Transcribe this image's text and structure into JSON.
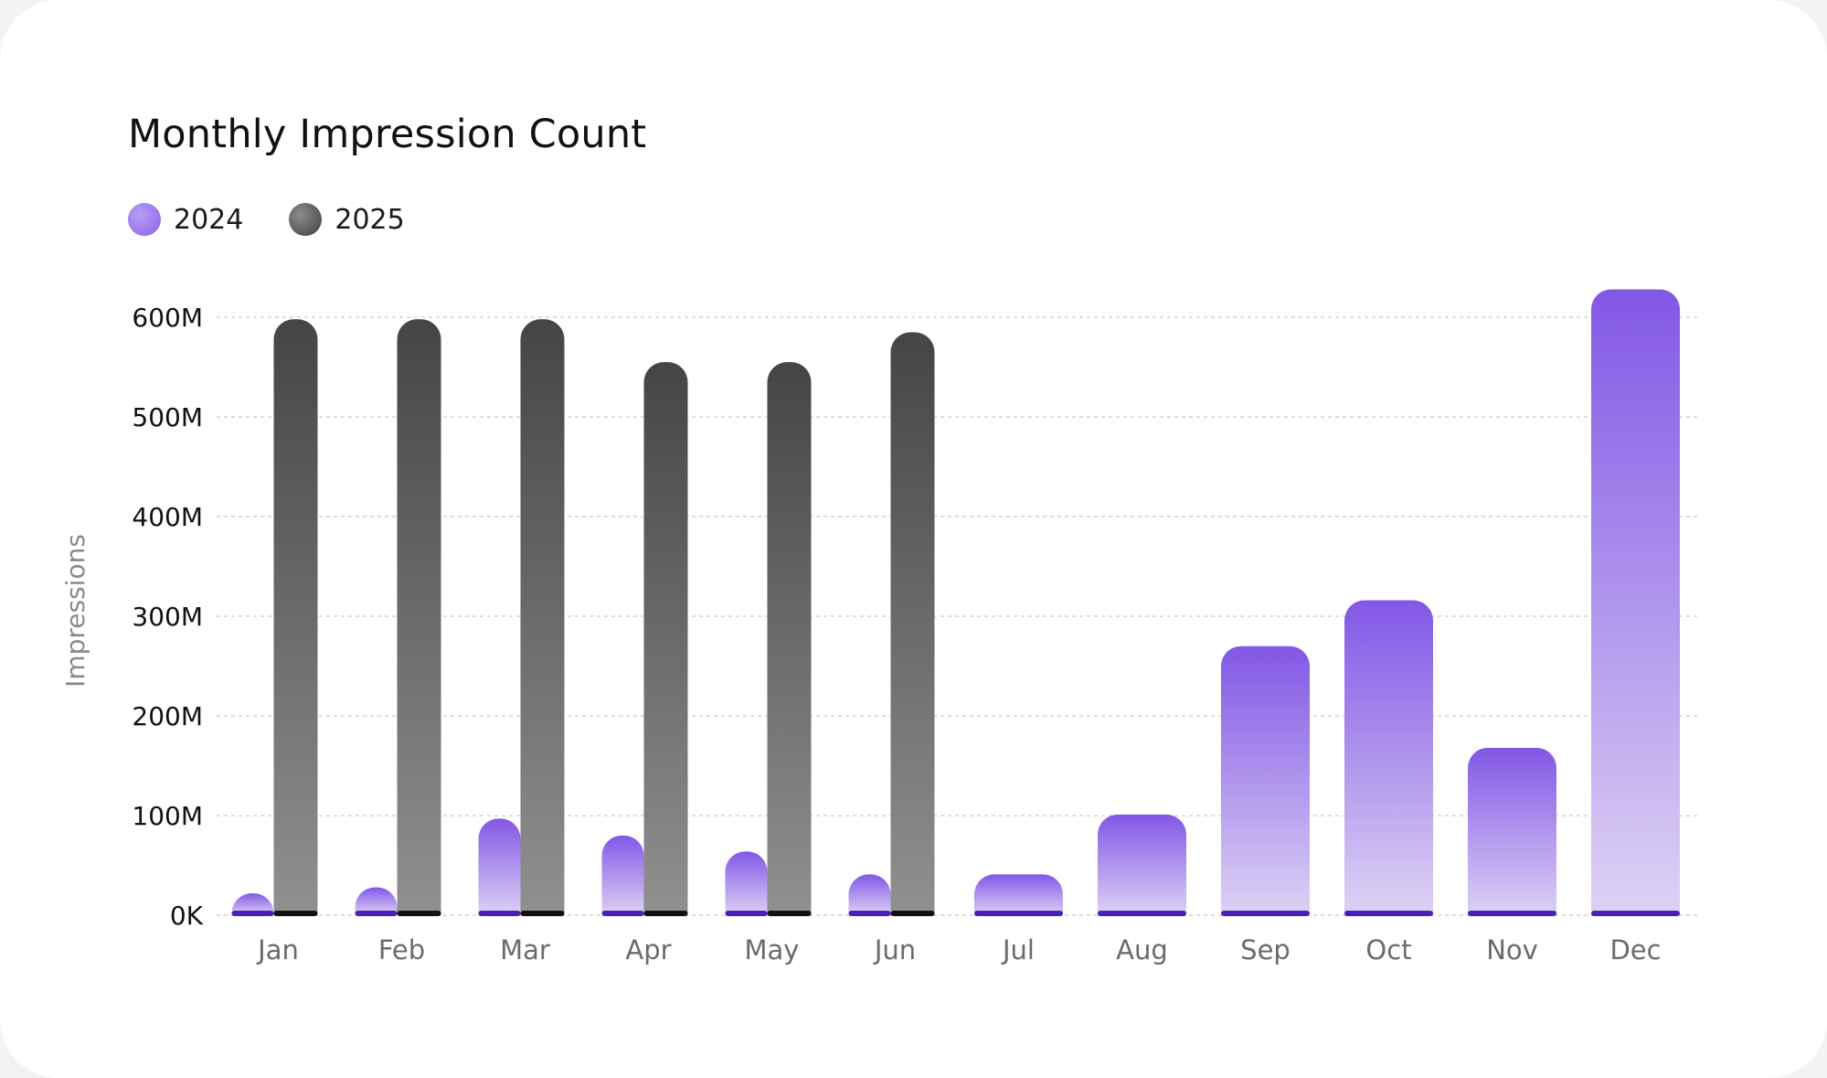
{
  "chart_data": {
    "type": "bar",
    "title": "Monthly Impression Count",
    "xlabel": "",
    "ylabel": "Impressions",
    "categories": [
      "Jan",
      "Feb",
      "Mar",
      "Apr",
      "May",
      "Jun",
      "Jul",
      "Aug",
      "Sep",
      "Oct",
      "Nov",
      "Dec"
    ],
    "series": [
      {
        "name": "2024",
        "color": "#8a63e8",
        "values": [
          22000000,
          28000000,
          97000000,
          80000000,
          64000000,
          41000000,
          41000000,
          101000000,
          270000000,
          316000000,
          168000000,
          628000000
        ]
      },
      {
        "name": "2025",
        "color": "#4a4a4a",
        "values": [
          598000000,
          598000000,
          598000000,
          555000000,
          555000000,
          585000000,
          null,
          null,
          null,
          null,
          null,
          null
        ]
      }
    ],
    "yticks": [
      "0K",
      "100M",
      "200M",
      "300M",
      "400M",
      "500M",
      "600M"
    ],
    "ytick_values": [
      0,
      100000000,
      200000000,
      300000000,
      400000000,
      500000000,
      600000000
    ],
    "ylim": [
      0,
      600000000
    ],
    "grid": true,
    "legend": "top-left"
  }
}
